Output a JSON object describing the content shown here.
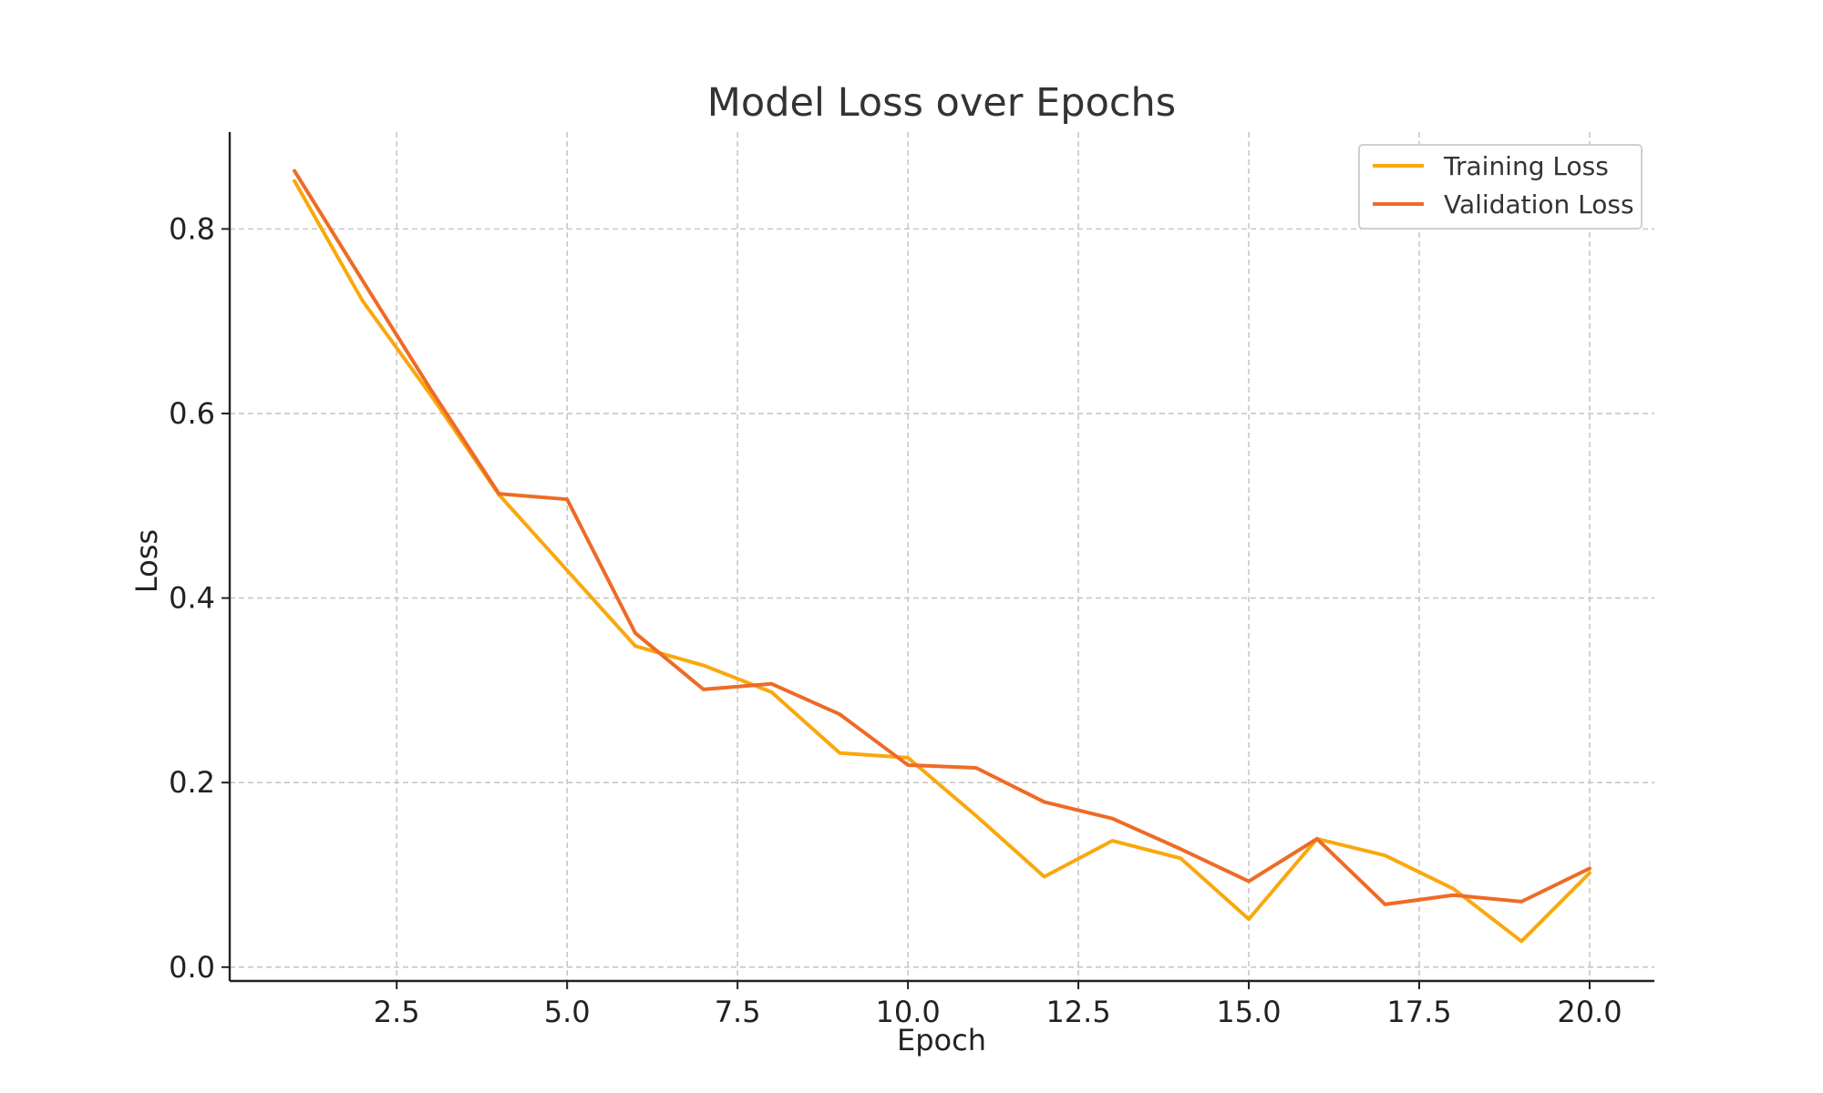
{
  "chart_data": {
    "type": "line",
    "title": "Model Loss over Epochs",
    "xlabel": "Epoch",
    "ylabel": "Loss",
    "xlim": [
      0.05,
      20.95
    ],
    "ylim": [
      -0.015,
      0.905
    ],
    "xticks": [
      2.5,
      5.0,
      7.5,
      10.0,
      12.5,
      15.0,
      17.5,
      20.0
    ],
    "xtick_labels": [
      "2.5",
      "5.0",
      "7.5",
      "10.0",
      "12.5",
      "15.0",
      "17.5",
      "20.0"
    ],
    "yticks": [
      0.0,
      0.2,
      0.4,
      0.6,
      0.8
    ],
    "ytick_labels": [
      "0.0",
      "0.2",
      "0.4",
      "0.6",
      "0.8"
    ],
    "grid": true,
    "legend_position": "top-right",
    "x": [
      1,
      2,
      3,
      4,
      5,
      6,
      7,
      8,
      9,
      10,
      11,
      12,
      13,
      14,
      15,
      16,
      17,
      18,
      19,
      20
    ],
    "series": [
      {
        "name": "Training Loss",
        "color": "#F9A80D",
        "values": [
          0.852,
          0.722,
          0.62,
          0.512,
          0.43,
          0.348,
          0.327,
          0.298,
          0.232,
          0.227,
          0.164,
          0.098,
          0.137,
          0.118,
          0.052,
          0.139,
          0.121,
          0.085,
          0.028,
          0.102
        ]
      },
      {
        "name": "Validation Loss",
        "color": "#EE6B27",
        "values": [
          0.863,
          0.744,
          0.626,
          0.513,
          0.507,
          0.362,
          0.301,
          0.307,
          0.274,
          0.219,
          0.216,
          0.179,
          0.161,
          0.128,
          0.093,
          0.139,
          0.068,
          0.078,
          0.071,
          0.107
        ]
      }
    ]
  }
}
